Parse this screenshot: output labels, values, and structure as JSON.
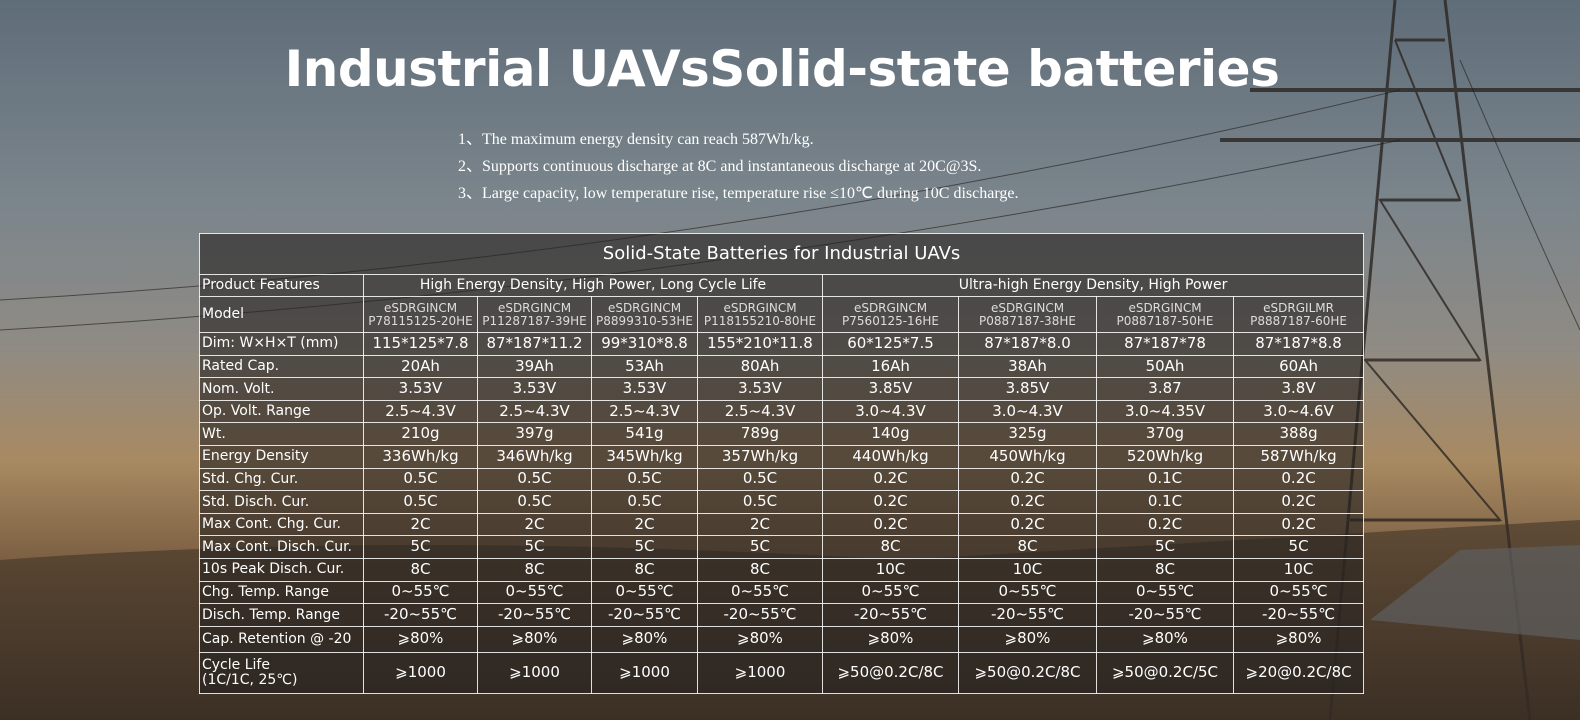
{
  "header": {
    "title": "Industrial UAVsSolid-state batteries",
    "features": [
      "1、The maximum energy density can reach 587Wh/kg.",
      "2、Supports continuous discharge at 8C and instantaneous discharge at 20C@3S.",
      "3、Large capacity, low temperature rise, temperature rise ≤10℃ during 10C discharge."
    ]
  },
  "table": {
    "title": "Solid-State Batteries for Industrial UAVs",
    "group_row": {
      "label": "Product Features",
      "groups": [
        "High Energy Density, High Power, Long Cycle Life",
        "Ultra-high Energy Density, High Power"
      ]
    },
    "model_row": {
      "label": "Model",
      "cells": [
        [
          "eSDRGINCM",
          "P78115125-20HE"
        ],
        [
          "eSDRGINCM",
          "P11287187-39HE"
        ],
        [
          "eSDRGINCM",
          "P8899310-53HE"
        ],
        [
          "eSDRGINCM",
          "P118155210-80HE"
        ],
        [
          "eSDRGINCM",
          "P7560125-16HE"
        ],
        [
          "eSDRGINCM",
          "P0887187-38HE"
        ],
        [
          "eSDRGINCM",
          "P0887187-50HE"
        ],
        [
          "eSDRGILMR",
          "P8887187-60HE"
        ]
      ]
    },
    "rows": [
      {
        "label": [
          "Dim: W×H×T (mm)"
        ],
        "cells": [
          "115*125*7.8",
          "87*187*11.2",
          "99*310*8.8",
          "155*210*11.8",
          "60*125*7.5",
          "87*187*8.0",
          "87*187*78",
          "87*187*8.8"
        ]
      },
      {
        "label": [
          "Rated Cap."
        ],
        "cells": [
          "20Ah",
          "39Ah",
          "53Ah",
          "80Ah",
          "16Ah",
          "38Ah",
          "50Ah",
          "60Ah"
        ]
      },
      {
        "label": [
          "Nom. Volt."
        ],
        "cells": [
          "3.53V",
          "3.53V",
          "3.53V",
          "3.53V",
          "3.85V",
          "3.85V",
          "3.87",
          "3.8V"
        ]
      },
      {
        "label": [
          "Op. Volt. Range"
        ],
        "cells": [
          "2.5~4.3V",
          "2.5~4.3V",
          "2.5~4.3V",
          "2.5~4.3V",
          "3.0~4.3V",
          "3.0~4.3V",
          "3.0~4.35V",
          "3.0~4.6V"
        ]
      },
      {
        "label": [
          "Wt."
        ],
        "cells": [
          "210g",
          "397g",
          "541g",
          "789g",
          "140g",
          "325g",
          "370g",
          "388g"
        ]
      },
      {
        "label": [
          "Energy Density"
        ],
        "cells": [
          "336Wh/kg",
          "346Wh/kg",
          "345Wh/kg",
          "357Wh/kg",
          "440Wh/kg",
          "450Wh/kg",
          "520Wh/kg",
          "587Wh/kg"
        ]
      },
      {
        "label": [
          "Std. Chg. Cur."
        ],
        "cells": [
          "0.5C",
          "0.5C",
          "0.5C",
          "0.5C",
          "0.2C",
          "0.2C",
          "0.1C",
          "0.2C"
        ]
      },
      {
        "label": [
          "Std. Disch. Cur."
        ],
        "cells": [
          "0.5C",
          "0.5C",
          "0.5C",
          "0.5C",
          "0.2C",
          "0.2C",
          "0.1C",
          "0.2C"
        ]
      },
      {
        "label": [
          "Max Cont. Chg. Cur."
        ],
        "cells": [
          "2C",
          "2C",
          "2C",
          "2C",
          "0.2C",
          "0.2C",
          "0.2C",
          "0.2C"
        ]
      },
      {
        "label": [
          "Max Cont. Disch. Cur."
        ],
        "cells": [
          "5C",
          "5C",
          "5C",
          "5C",
          "8C",
          "8C",
          "5C",
          "5C"
        ]
      },
      {
        "label": [
          "10s Peak Disch. Cur."
        ],
        "cells": [
          "8C",
          "8C",
          "8C",
          "8C",
          "10C",
          "10C",
          "8C",
          "10C"
        ]
      },
      {
        "label": [
          "Chg. Temp. Range"
        ],
        "cells": [
          "0~55℃",
          "0~55℃",
          "0~55℃",
          "0~55℃",
          "0~55℃",
          "0~55℃",
          "0~55℃",
          "0~55℃"
        ]
      },
      {
        "label": [
          "Disch. Temp. Range"
        ],
        "cells": [
          "-20~55℃",
          "-20~55℃",
          "-20~55℃",
          "-20~55℃",
          "-20~55℃",
          "-20~55℃",
          "-20~55℃",
          "-20~55℃"
        ]
      },
      {
        "label": [
          "Cap. Retention @ -20"
        ],
        "cells": [
          "⩾80%",
          "⩾80%",
          "⩾80%",
          "⩾80%",
          "⩾80%",
          "⩾80%",
          "⩾80%",
          "⩾80%"
        ]
      },
      {
        "label": [
          "Cycle Life",
          "(1C/1C, 25℃)"
        ],
        "cells": [
          "⩾1000",
          "⩾1000",
          "⩾1000",
          "⩾1000",
          "⩾50@0.2C/8C",
          "⩾50@0.2C/8C",
          "⩾50@0.2C/5C",
          "⩾20@0.2C/8C"
        ]
      }
    ]
  }
}
